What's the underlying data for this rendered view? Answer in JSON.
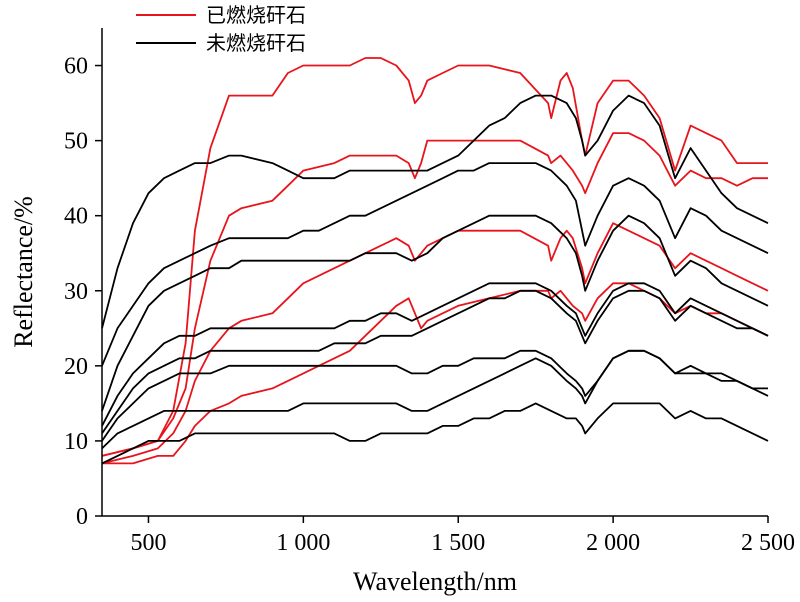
{
  "chart_data": {
    "type": "line",
    "xlabel": "Wavelength/nm",
    "ylabel": "Reflectance/%",
    "xlim": [
      350,
      2500
    ],
    "ylim": [
      0,
      65
    ],
    "x_ticks": [
      {
        "value": 500,
        "label": "500"
      },
      {
        "value": 1000,
        "label": "1 000"
      },
      {
        "value": 1500,
        "label": "1 500"
      },
      {
        "value": 2000,
        "label": "2 000"
      },
      {
        "value": 2500,
        "label": "2 500"
      }
    ],
    "y_ticks": [
      {
        "value": 0,
        "label": "0"
      },
      {
        "value": 10,
        "label": "10"
      },
      {
        "value": 20,
        "label": "20"
      },
      {
        "value": 30,
        "label": "30"
      },
      {
        "value": 40,
        "label": "40"
      },
      {
        "value": 50,
        "label": "50"
      },
      {
        "value": 60,
        "label": "60"
      }
    ],
    "legend": {
      "placement": "top-center",
      "entries": [
        {
          "label": "已燃烧矸石",
          "color": "#e8141c"
        },
        {
          "label": "未燃烧矸石",
          "color": "#000000"
        }
      ]
    },
    "colors": {
      "burned": "#e8141c",
      "unburned": "#000000"
    },
    "series": [
      {
        "group": "burned",
        "x": [
          350,
          450,
          530,
          580,
          620,
          650,
          700,
          760,
          800,
          900,
          950,
          1000,
          1100,
          1150,
          1200,
          1250,
          1300,
          1340,
          1360,
          1380,
          1400,
          1450,
          1500,
          1600,
          1700,
          1790,
          1800,
          1830,
          1850,
          1870,
          1900,
          1910,
          1950,
          2000,
          2050,
          2100,
          2150,
          2200,
          2250,
          2300,
          2350,
          2400,
          2450,
          2500
        ],
        "y": [
          8,
          9,
          10,
          14,
          23,
          38,
          49,
          56,
          56,
          56,
          59,
          60,
          60,
          60,
          61,
          61,
          60,
          58,
          55,
          56,
          58,
          59,
          60,
          60,
          59,
          55,
          53,
          58,
          59,
          57,
          50,
          48,
          55,
          58,
          58,
          56,
          53,
          46,
          52,
          51,
          50,
          47,
          47,
          47
        ]
      },
      {
        "group": "burned",
        "x": [
          350,
          450,
          530,
          580,
          620,
          650,
          700,
          760,
          800,
          900,
          950,
          1000,
          1100,
          1150,
          1200,
          1250,
          1300,
          1340,
          1360,
          1380,
          1400,
          1450,
          1500,
          1600,
          1700,
          1790,
          1800,
          1830,
          1850,
          1870,
          1900,
          1910,
          1950,
          2000,
          2050,
          2100,
          2150,
          2200,
          2250,
          2300,
          2350,
          2400,
          2450,
          2500
        ],
        "y": [
          8,
          9,
          10,
          13,
          17,
          25,
          34,
          40,
          41,
          42,
          44,
          46,
          47,
          48,
          48,
          48,
          48,
          47,
          45,
          47,
          50,
          50,
          50,
          50,
          50,
          48,
          47,
          48,
          47,
          46,
          44,
          43,
          47,
          51,
          51,
          50,
          48,
          44,
          46,
          45,
          45,
          44,
          45,
          45
        ]
      },
      {
        "group": "burned",
        "x": [
          350,
          450,
          530,
          580,
          620,
          650,
          700,
          760,
          800,
          900,
          950,
          1000,
          1100,
          1150,
          1200,
          1250,
          1300,
          1340,
          1360,
          1380,
          1400,
          1450,
          1500,
          1600,
          1700,
          1790,
          1800,
          1830,
          1850,
          1870,
          1900,
          1910,
          1950,
          2000,
          2050,
          2100,
          2150,
          2200,
          2250,
          2300,
          2350,
          2400,
          2450,
          2500
        ],
        "y": [
          7,
          8,
          9,
          11,
          14,
          18,
          22,
          25,
          26,
          27,
          29,
          31,
          33,
          34,
          35,
          36,
          37,
          36,
          34,
          35,
          36,
          37,
          38,
          38,
          38,
          36,
          34,
          37,
          38,
          37,
          33,
          31,
          35,
          39,
          38,
          37,
          36,
          33,
          35,
          34,
          33,
          32,
          31,
          30
        ]
      },
      {
        "group": "burned",
        "x": [
          350,
          450,
          530,
          580,
          620,
          650,
          700,
          760,
          800,
          900,
          950,
          1000,
          1100,
          1150,
          1200,
          1250,
          1300,
          1340,
          1360,
          1380,
          1400,
          1450,
          1500,
          1600,
          1700,
          1790,
          1800,
          1830,
          1850,
          1870,
          1900,
          1910,
          1950,
          2000,
          2050,
          2100,
          2150,
          2200,
          2250,
          2300,
          2350,
          2400,
          2450,
          2500
        ],
        "y": [
          7,
          7,
          8,
          8,
          10,
          12,
          14,
          15,
          16,
          17,
          18,
          19,
          21,
          22,
          24,
          26,
          28,
          29,
          27,
          25,
          26,
          27,
          28,
          29,
          30,
          30,
          29,
          30,
          29,
          28,
          27,
          26,
          29,
          31,
          31,
          30,
          29,
          27,
          28,
          27,
          27,
          26,
          25,
          24
        ]
      },
      {
        "group": "unburned",
        "x": [
          350,
          400,
          450,
          500,
          550,
          600,
          650,
          700,
          760,
          800,
          900,
          950,
          1000,
          1050,
          1100,
          1150,
          1200,
          1250,
          1300,
          1350,
          1400,
          1450,
          1500,
          1550,
          1600,
          1650,
          1700,
          1750,
          1800,
          1850,
          1880,
          1900,
          1910,
          1950,
          2000,
          2050,
          2100,
          2150,
          2200,
          2250,
          2300,
          2350,
          2400,
          2450,
          2500
        ],
        "y": [
          25,
          33,
          39,
          43,
          45,
          46,
          47,
          47,
          48,
          48,
          47,
          46,
          45,
          45,
          45,
          46,
          46,
          46,
          46,
          46,
          46,
          47,
          48,
          50,
          52,
          53,
          55,
          56,
          56,
          55,
          53,
          50,
          48,
          50,
          54,
          56,
          55,
          52,
          45,
          49,
          46,
          43,
          41,
          40,
          39
        ]
      },
      {
        "group": "unburned",
        "x": [
          350,
          400,
          450,
          500,
          550,
          600,
          650,
          700,
          760,
          800,
          900,
          950,
          1000,
          1050,
          1100,
          1150,
          1200,
          1250,
          1300,
          1350,
          1400,
          1450,
          1500,
          1550,
          1600,
          1650,
          1700,
          1750,
          1800,
          1850,
          1880,
          1900,
          1910,
          1950,
          2000,
          2050,
          2100,
          2150,
          2200,
          2250,
          2300,
          2350,
          2400,
          2450,
          2500
        ],
        "y": [
          20,
          25,
          28,
          31,
          33,
          34,
          35,
          36,
          37,
          37,
          37,
          37,
          38,
          38,
          39,
          40,
          40,
          41,
          42,
          43,
          44,
          45,
          46,
          46,
          47,
          47,
          47,
          47,
          46,
          44,
          42,
          38,
          36,
          40,
          44,
          45,
          44,
          42,
          37,
          41,
          40,
          38,
          37,
          36,
          35
        ]
      },
      {
        "group": "unburned",
        "x": [
          350,
          400,
          450,
          500,
          550,
          600,
          650,
          700,
          760,
          800,
          900,
          950,
          1000,
          1050,
          1100,
          1150,
          1200,
          1250,
          1300,
          1350,
          1400,
          1450,
          1500,
          1550,
          1600,
          1650,
          1700,
          1750,
          1800,
          1850,
          1880,
          1900,
          1910,
          1950,
          2000,
          2050,
          2100,
          2150,
          2200,
          2250,
          2300,
          2350,
          2400,
          2450,
          2500
        ],
        "y": [
          14,
          20,
          24,
          28,
          30,
          31,
          32,
          33,
          33,
          34,
          34,
          34,
          34,
          34,
          34,
          34,
          35,
          35,
          35,
          34,
          35,
          37,
          38,
          39,
          40,
          40,
          40,
          40,
          39,
          37,
          35,
          32,
          30,
          34,
          38,
          40,
          39,
          37,
          32,
          34,
          33,
          31,
          30,
          29,
          28
        ]
      },
      {
        "group": "unburned",
        "x": [
          350,
          400,
          450,
          500,
          550,
          600,
          650,
          700,
          760,
          800,
          900,
          950,
          1000,
          1050,
          1100,
          1150,
          1200,
          1250,
          1300,
          1350,
          1400,
          1450,
          1500,
          1550,
          1600,
          1650,
          1700,
          1750,
          1800,
          1850,
          1880,
          1900,
          1910,
          1950,
          2000,
          2050,
          2100,
          2150,
          2200,
          2250,
          2300,
          2350,
          2400,
          2450,
          2500
        ],
        "y": [
          12,
          16,
          19,
          21,
          23,
          24,
          24,
          25,
          25,
          25,
          25,
          25,
          25,
          25,
          25,
          26,
          26,
          27,
          27,
          26,
          27,
          28,
          29,
          30,
          31,
          31,
          31,
          31,
          30,
          28,
          27,
          25,
          24,
          27,
          30,
          31,
          31,
          30,
          27,
          29,
          28,
          27,
          26,
          25,
          24
        ]
      },
      {
        "group": "unburned",
        "x": [
          350,
          400,
          450,
          500,
          550,
          600,
          650,
          700,
          760,
          800,
          900,
          950,
          1000,
          1050,
          1100,
          1150,
          1200,
          1250,
          1300,
          1350,
          1400,
          1450,
          1500,
          1550,
          1600,
          1650,
          1700,
          1750,
          1800,
          1850,
          1880,
          1900,
          1910,
          1950,
          2000,
          2050,
          2100,
          2150,
          2200,
          2250,
          2300,
          2350,
          2400,
          2450,
          2500
        ],
        "y": [
          11,
          14,
          17,
          19,
          20,
          21,
          21,
          22,
          22,
          22,
          22,
          22,
          22,
          22,
          23,
          23,
          23,
          24,
          24,
          24,
          25,
          26,
          27,
          28,
          29,
          29,
          30,
          30,
          29,
          27,
          26,
          24,
          23,
          26,
          29,
          30,
          30,
          29,
          26,
          28,
          27,
          26,
          25,
          25,
          24
        ]
      },
      {
        "group": "unburned",
        "x": [
          350,
          400,
          450,
          500,
          550,
          600,
          650,
          700,
          760,
          800,
          900,
          950,
          1000,
          1050,
          1100,
          1150,
          1200,
          1250,
          1300,
          1350,
          1400,
          1450,
          1500,
          1550,
          1600,
          1650,
          1700,
          1750,
          1800,
          1850,
          1880,
          1900,
          1910,
          1950,
          2000,
          2050,
          2100,
          2150,
          2200,
          2250,
          2300,
          2350,
          2400,
          2450,
          2500
        ],
        "y": [
          10,
          13,
          15,
          17,
          18,
          19,
          19,
          19,
          20,
          20,
          20,
          20,
          20,
          20,
          20,
          20,
          20,
          20,
          20,
          19,
          19,
          20,
          20,
          21,
          21,
          21,
          22,
          22,
          21,
          19,
          18,
          17,
          16,
          18,
          21,
          22,
          22,
          21,
          19,
          20,
          19,
          19,
          18,
          17,
          17
        ]
      },
      {
        "group": "unburned",
        "x": [
          350,
          400,
          450,
          500,
          550,
          600,
          650,
          700,
          760,
          800,
          900,
          950,
          1000,
          1050,
          1100,
          1150,
          1200,
          1250,
          1300,
          1350,
          1400,
          1450,
          1500,
          1550,
          1600,
          1650,
          1700,
          1750,
          1800,
          1850,
          1880,
          1900,
          1910,
          1950,
          2000,
          2050,
          2100,
          2150,
          2200,
          2250,
          2300,
          2350,
          2400,
          2450,
          2500
        ],
        "y": [
          9,
          11,
          12,
          13,
          14,
          14,
          14,
          14,
          14,
          14,
          14,
          14,
          15,
          15,
          15,
          15,
          15,
          15,
          15,
          14,
          14,
          15,
          16,
          17,
          18,
          19,
          20,
          21,
          20,
          18,
          17,
          16,
          15,
          18,
          21,
          22,
          22,
          21,
          19,
          19,
          19,
          18,
          18,
          17,
          16
        ]
      },
      {
        "group": "unburned",
        "x": [
          350,
          400,
          450,
          500,
          550,
          600,
          650,
          700,
          760,
          800,
          900,
          950,
          1000,
          1050,
          1100,
          1150,
          1200,
          1250,
          1300,
          1350,
          1400,
          1450,
          1500,
          1550,
          1600,
          1650,
          1700,
          1750,
          1800,
          1850,
          1880,
          1900,
          1910,
          1950,
          2000,
          2050,
          2100,
          2150,
          2200,
          2250,
          2300,
          2350,
          2400,
          2450,
          2500
        ],
        "y": [
          7,
          8,
          9,
          10,
          10,
          10,
          11,
          11,
          11,
          11,
          11,
          11,
          11,
          11,
          11,
          10,
          10,
          11,
          11,
          11,
          11,
          12,
          12,
          13,
          13,
          14,
          14,
          15,
          14,
          13,
          13,
          12,
          11,
          13,
          15,
          15,
          15,
          15,
          13,
          14,
          13,
          13,
          12,
          11,
          10
        ]
      }
    ]
  }
}
